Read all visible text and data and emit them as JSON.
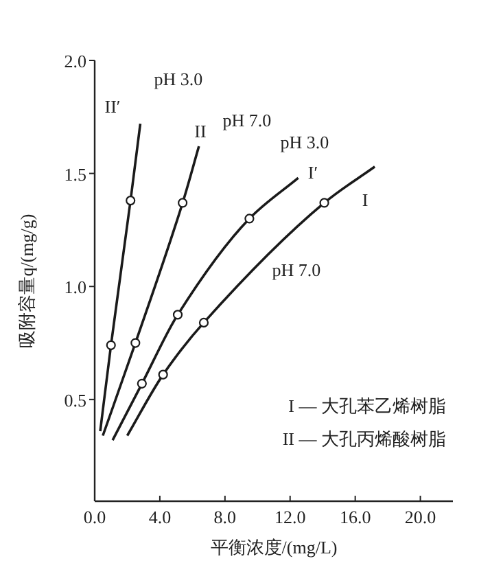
{
  "chart_data": {
    "type": "line",
    "xlabel": "平衡浓度/(mg/L)",
    "ylabel": "吸附容量q/(mg/g)",
    "xlim": [
      0,
      22
    ],
    "ylim": [
      0.05,
      2.0
    ],
    "xticks": [
      {
        "value": 0,
        "label": "0.0"
      },
      {
        "value": 4,
        "label": "4.0"
      },
      {
        "value": 8,
        "label": "8.0"
      },
      {
        "value": 12,
        "label": "12.0"
      },
      {
        "value": 16,
        "label": "16.0"
      },
      {
        "value": 20,
        "label": "20.0"
      }
    ],
    "yticks": [
      {
        "value": 0.5,
        "label": "0.5"
      },
      {
        "value": 1,
        "label": "1.0"
      },
      {
        "value": 1.5,
        "label": "1.5"
      },
      {
        "value": 2,
        "label": "2.0"
      }
    ],
    "grid": false,
    "line_style": "solid",
    "series": [
      {
        "color": "#1a1a1a",
        "x": [
          0.34,
          1.0,
          2.2,
          2.8
        ],
        "values": [
          0.36,
          0.74,
          1.38,
          1.72
        ]
      },
      {
        "color": "#1a1a1a",
        "x": [
          0.5,
          2.5,
          5.4,
          6.4
        ],
        "values": [
          0.34,
          0.75,
          1.37,
          1.62
        ]
      },
      {
        "color": "#1a1a1a",
        "x": [
          1.1,
          2.9,
          5.1,
          9.5,
          12.5
        ],
        "values": [
          0.32,
          0.57,
          0.875,
          1.3,
          1.48
        ]
      },
      {
        "color": "#1a1a1a",
        "x": [
          2.0,
          4.2,
          6.7,
          14.1,
          17.2
        ],
        "values": [
          0.34,
          0.61,
          0.84,
          1.37,
          1.53
        ]
      },
      {
        "type": "scatter",
        "marker": "circle",
        "color": "#1a1a1a",
        "x": [
          1.0,
          2.2,
          2.5,
          5.4,
          2.9,
          5.1,
          9.5,
          4.2,
          6.7,
          14.1
        ],
        "values": [
          0.74,
          1.38,
          0.75,
          1.37,
          0.57,
          0.875,
          1.3,
          0.61,
          0.84,
          1.37
        ]
      }
    ],
    "annotations": [
      "pH 3.0",
      "II′",
      "pH 7.0",
      "II",
      "pH 3.0",
      "I′",
      "I",
      "pH 7.0",
      "I — 大孔苯乙烯树脂",
      "II — 大孔丙烯酸树脂"
    ]
  }
}
